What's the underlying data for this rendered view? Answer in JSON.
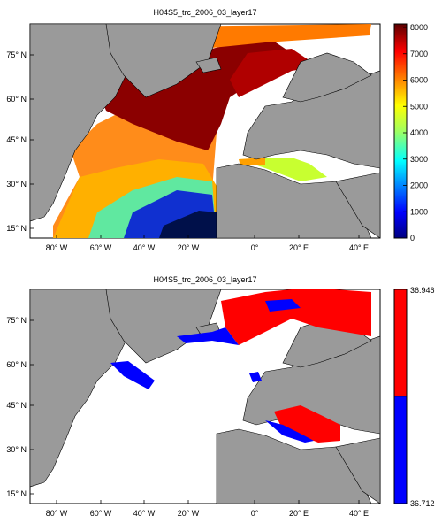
{
  "panels": [
    {
      "title": "H04S5_trc_2006_03_layer17",
      "colorbar": {
        "ticks": [
          "8000",
          "7000",
          "6000",
          "5000",
          "4000",
          "3000",
          "2000",
          "1000",
          "0"
        ]
      }
    },
    {
      "title": "H04S5_trc_2006_03_layer17",
      "colorbar": {
        "max_label": "36.946",
        "min_label": "36.712"
      }
    }
  ],
  "axes": {
    "lat_labels": [
      "75° N",
      "60° N",
      "45° N",
      "30° N",
      "15° N"
    ],
    "lon_labels": [
      "80° W",
      "60° W",
      "40° W",
      "20° W",
      "0°",
      "20° E",
      "40° E"
    ]
  },
  "colors": {
    "land": "#9a9a9a",
    "ocean_blank": "#ffffff",
    "bin_high": "#ff0000",
    "bin_low": "#0000ff"
  }
}
